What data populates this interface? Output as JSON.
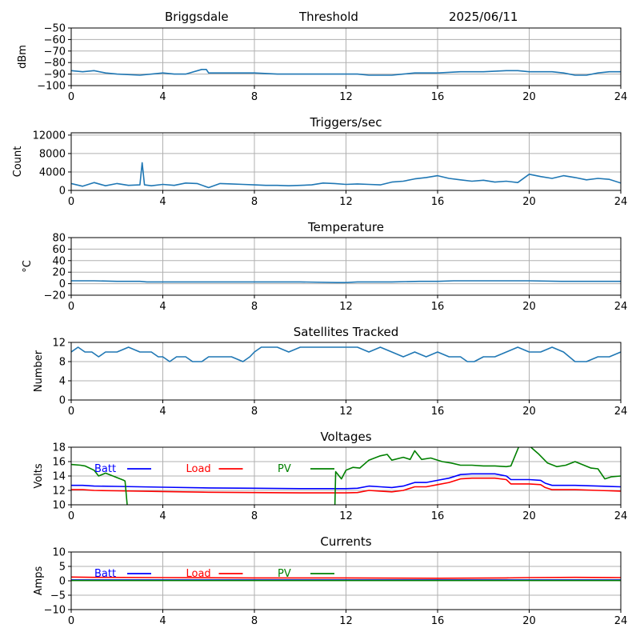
{
  "header": {
    "station": "Briggsdale",
    "label": "Threshold",
    "date": "2025/06/11"
  },
  "colors": {
    "series": "#1f77b4",
    "batt": "#0000ff",
    "load": "#ff0000",
    "pv": "#008000",
    "grid": "#b0b0b0"
  },
  "chart_data": [
    {
      "type": "line",
      "title": "",
      "ylabel": "dBm",
      "xlim": [
        0,
        24
      ],
      "ylim": [
        -100,
        -50
      ],
      "xticks": [
        0,
        4,
        8,
        12,
        16,
        20,
        24
      ],
      "yticks": [
        -100,
        -90,
        -80,
        -70,
        -60,
        -50
      ],
      "grid": true,
      "series": [
        {
          "color": "#1f77b4",
          "x": [
            0,
            0.5,
            1,
            1.5,
            2,
            3,
            4,
            4.5,
            5,
            5.7,
            5.9,
            6,
            7,
            8,
            9,
            10,
            11,
            12,
            12.5,
            13,
            13.5,
            14,
            14.5,
            15,
            15.5,
            16,
            17,
            18,
            19,
            19.5,
            20,
            21,
            21.5,
            22,
            22.5,
            23,
            23.5,
            24
          ],
          "y": [
            -87,
            -88,
            -87,
            -89,
            -90,
            -91,
            -89,
            -90,
            -90,
            -86,
            -86,
            -89,
            -89,
            -89,
            -90,
            -90,
            -90,
            -90,
            -90,
            -91,
            -91,
            -91,
            -90,
            -89,
            -89,
            -89,
            -88,
            -88,
            -87,
            -87,
            -88,
            -88,
            -89,
            -91,
            -91,
            -89,
            -88,
            -88
          ]
        }
      ]
    },
    {
      "type": "line",
      "title": "Triggers/sec",
      "ylabel": "Count",
      "xlim": [
        0,
        24
      ],
      "ylim": [
        0,
        12500
      ],
      "xticks": [
        0,
        4,
        8,
        12,
        16,
        20,
        24
      ],
      "yticks": [
        0,
        4000,
        8000,
        12000
      ],
      "grid": true,
      "series": [
        {
          "color": "#1f77b4",
          "x": [
            0,
            0.5,
            1,
            1.5,
            2,
            2.5,
            3,
            3.1,
            3.2,
            3.5,
            4,
            4.5,
            5,
            5.5,
            6,
            6.5,
            7,
            7.5,
            8,
            8.5,
            9,
            9.5,
            10,
            10.5,
            11,
            11.5,
            12,
            12.5,
            13,
            13.5,
            14,
            14.5,
            15,
            15.5,
            16,
            16.5,
            17,
            17.5,
            18,
            18.5,
            19,
            19.5,
            20,
            20.5,
            21,
            21.5,
            22,
            22.5,
            23,
            23.5,
            24
          ],
          "y": [
            1500,
            900,
            1700,
            1000,
            1500,
            1100,
            1200,
            6000,
            1200,
            1000,
            1300,
            1100,
            1600,
            1500,
            600,
            1500,
            1400,
            1300,
            1200,
            1100,
            1100,
            1000,
            1100,
            1200,
            1600,
            1500,
            1300,
            1400,
            1300,
            1200,
            1800,
            2000,
            2500,
            2800,
            3200,
            2600,
            2300,
            2000,
            2200,
            1800,
            2000,
            1700,
            3500,
            3000,
            2600,
            3200,
            2800,
            2300,
            2600,
            2400,
            1600
          ]
        }
      ]
    },
    {
      "type": "line",
      "title": "Temperature",
      "ylabel": "°C",
      "xlim": [
        0,
        24
      ],
      "ylim": [
        -20,
        80
      ],
      "xticks": [
        0,
        4,
        8,
        12,
        16,
        20,
        24
      ],
      "yticks": [
        -20,
        0,
        20,
        40,
        60,
        80
      ],
      "grid": true,
      "series": [
        {
          "color": "#1f77b4",
          "x": [
            0,
            1,
            2,
            3,
            3.3,
            4,
            6,
            8,
            10,
            11.6,
            12,
            12.5,
            14,
            15.2,
            16,
            16.7,
            18,
            20,
            21.4,
            22,
            24
          ],
          "y": [
            5,
            5,
            4,
            4,
            3,
            3,
            3,
            3,
            3,
            2,
            2,
            3,
            3,
            4,
            4,
            5,
            5,
            5,
            4,
            4,
            4
          ]
        }
      ]
    },
    {
      "type": "line",
      "title": "Satellites Tracked",
      "ylabel": "Number",
      "xlim": [
        0,
        24
      ],
      "ylim": [
        0,
        12
      ],
      "xticks": [
        0,
        4,
        8,
        12,
        16,
        20,
        24
      ],
      "yticks": [
        0,
        4,
        8,
        12
      ],
      "grid": true,
      "series": [
        {
          "color": "#1f77b4",
          "x": [
            0,
            0.3,
            0.6,
            0.9,
            1.2,
            1.5,
            2,
            2.5,
            3,
            3.5,
            3.8,
            4,
            4.3,
            4.6,
            5,
            5.3,
            5.7,
            6,
            6.5,
            7,
            7.5,
            7.8,
            8,
            8.3,
            8.7,
            9,
            9.5,
            10,
            10.5,
            11,
            11.5,
            12,
            12.5,
            13,
            13.5,
            14,
            14.5,
            15,
            15.5,
            16,
            16.5,
            17,
            17.3,
            17.6,
            18,
            18.5,
            19,
            19.5,
            20,
            20.5,
            21,
            21.5,
            22,
            22.5,
            23,
            23.5,
            24
          ],
          "y": [
            10,
            11,
            10,
            10,
            9,
            10,
            10,
            11,
            10,
            10,
            9,
            9,
            8,
            9,
            9,
            8,
            8,
            9,
            9,
            9,
            8,
            9,
            10,
            11,
            11,
            11,
            10,
            11,
            11,
            11,
            11,
            11,
            11,
            10,
            11,
            10,
            9,
            10,
            9,
            10,
            9,
            9,
            8,
            8,
            9,
            9,
            10,
            11,
            10,
            10,
            11,
            10,
            8,
            8,
            9,
            9,
            10
          ]
        }
      ]
    },
    {
      "type": "line",
      "title": "Voltages",
      "ylabel": "Volts",
      "xlim": [
        0,
        24
      ],
      "ylim": [
        10,
        18
      ],
      "xticks": [
        0,
        4,
        8,
        12,
        16,
        20,
        24
      ],
      "yticks": [
        10,
        12,
        14,
        16,
        18
      ],
      "grid": true,
      "legend": "top-left",
      "series": [
        {
          "name": "Batt",
          "color": "#0000ff",
          "x": [
            0,
            0.5,
            1,
            2,
            4,
            6,
            8,
            10,
            12,
            12.5,
            13,
            13.5,
            14,
            14.5,
            15,
            15.5,
            16,
            16.5,
            17,
            17.5,
            18,
            18.5,
            19,
            19.2,
            20,
            20.5,
            20.7,
            21,
            22,
            23,
            24
          ],
          "y": [
            12.7,
            12.7,
            12.6,
            12.55,
            12.45,
            12.35,
            12.3,
            12.25,
            12.25,
            12.3,
            12.6,
            12.5,
            12.4,
            12.6,
            13.1,
            13.1,
            13.4,
            13.7,
            14.2,
            14.3,
            14.3,
            14.3,
            14.0,
            13.5,
            13.5,
            13.4,
            13.0,
            12.7,
            12.7,
            12.6,
            12.5
          ]
        },
        {
          "name": "Load",
          "color": "#ff0000",
          "x": [
            0,
            0.5,
            1,
            2,
            4,
            6,
            8,
            10,
            12,
            12.5,
            13,
            13.5,
            14,
            14.5,
            15,
            15.5,
            16,
            16.5,
            17,
            17.5,
            18,
            18.5,
            19,
            19.2,
            20,
            20.5,
            20.7,
            21,
            22,
            23,
            24
          ],
          "y": [
            12.1,
            12.1,
            12.0,
            11.95,
            11.85,
            11.75,
            11.7,
            11.65,
            11.65,
            11.7,
            12.0,
            11.9,
            11.8,
            12.0,
            12.5,
            12.5,
            12.8,
            13.1,
            13.6,
            13.7,
            13.7,
            13.7,
            13.5,
            12.9,
            12.9,
            12.8,
            12.4,
            12.1,
            12.1,
            12.0,
            11.9
          ]
        },
        {
          "name": "PV",
          "color": "#008000",
          "x": [
            0,
            0.4,
            0.6,
            1,
            1.2,
            1.5,
            2.3,
            2.35,
            2.5,
            11.5,
            11.55,
            11.8,
            12,
            12.3,
            12.6,
            13,
            13.5,
            13.8,
            14,
            14.5,
            14.8,
            15,
            15.3,
            15.7,
            16.2,
            16.6,
            17,
            17.5,
            18,
            18.5,
            19,
            19.2,
            19.6,
            20,
            20.4,
            20.8,
            21.2,
            21.6,
            22,
            22.7,
            23,
            23.3,
            23.6,
            24
          ],
          "y": [
            15.6,
            15.5,
            15.4,
            14.8,
            14.0,
            14.4,
            13.4,
            13.3,
            8,
            8,
            14.6,
            13.6,
            14.8,
            15.2,
            15.1,
            16.2,
            16.8,
            17.0,
            16.2,
            16.6,
            16.3,
            17.5,
            16.3,
            16.5,
            16.0,
            15.8,
            15.5,
            15.5,
            15.4,
            15.4,
            15.3,
            15.4,
            18.5,
            18.2,
            17.1,
            15.8,
            15.3,
            15.5,
            16.0,
            15.1,
            15.0,
            13.6,
            13.9,
            14.0
          ]
        }
      ]
    },
    {
      "type": "line",
      "title": "Currents",
      "ylabel": "Amps",
      "xlim": [
        0,
        24
      ],
      "ylim": [
        -10,
        10
      ],
      "xticks": [
        0,
        4,
        8,
        12,
        16,
        20,
        24
      ],
      "yticks": [
        -10,
        -5,
        0,
        5,
        10
      ],
      "grid": true,
      "legend": "top-left",
      "series": [
        {
          "name": "Batt",
          "color": "#0000ff",
          "x": [
            0,
            6,
            12,
            18,
            24
          ],
          "y": [
            0.3,
            0.3,
            0.3,
            0.3,
            0.3
          ]
        },
        {
          "name": "Load",
          "color": "#ff0000",
          "x": [
            0,
            1,
            4,
            8,
            12,
            16,
            19,
            20,
            22,
            24
          ],
          "y": [
            1.3,
            1.2,
            1.1,
            1.0,
            1.0,
            0.9,
            1.0,
            1.1,
            1.2,
            1.1
          ]
        },
        {
          "name": "PV",
          "color": "#008000",
          "x": [
            0,
            6,
            12,
            18,
            24
          ],
          "y": [
            0.1,
            0.1,
            0.1,
            0.1,
            0.1
          ]
        }
      ]
    }
  ]
}
